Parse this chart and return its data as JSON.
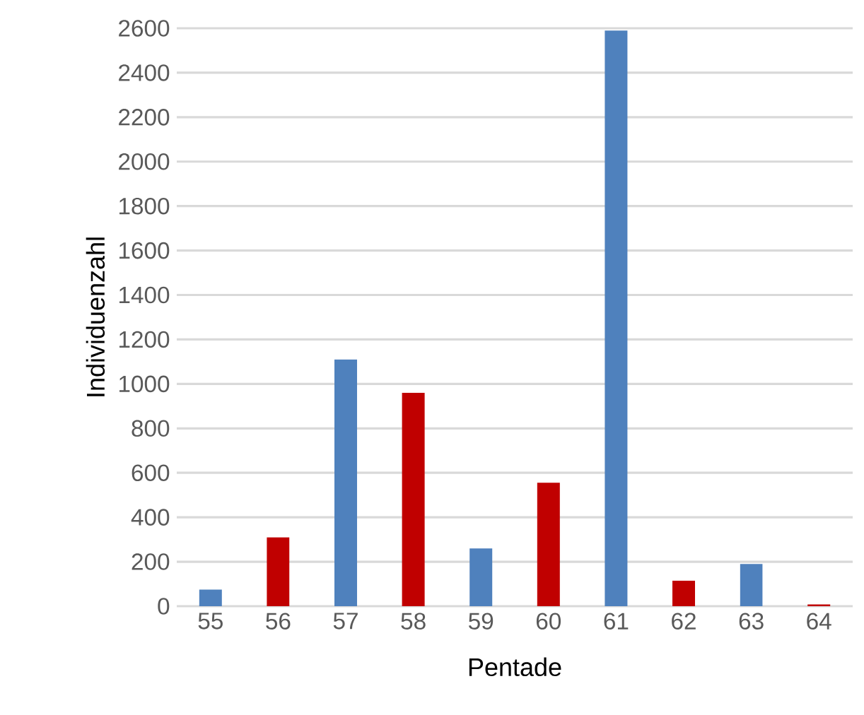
{
  "chart_data": {
    "type": "bar",
    "xlabel": "Pentade",
    "ylabel": "Individuenzahl",
    "categories": [
      "55",
      "56",
      "57",
      "58",
      "59",
      "60",
      "61",
      "62",
      "63",
      "64"
    ],
    "values": [
      75,
      310,
      1110,
      960,
      260,
      555,
      2590,
      115,
      190,
      8
    ],
    "colors": [
      "#4f81bd",
      "#c00000",
      "#4f81bd",
      "#c00000",
      "#4f81bd",
      "#c00000",
      "#4f81bd",
      "#c00000",
      "#4f81bd",
      "#c00000"
    ],
    "ylim": [
      0,
      2600
    ],
    "yticks": [
      0,
      200,
      400,
      600,
      800,
      1000,
      1200,
      1400,
      1600,
      1800,
      2000,
      2200,
      2400,
      2600
    ],
    "grid": "y"
  }
}
